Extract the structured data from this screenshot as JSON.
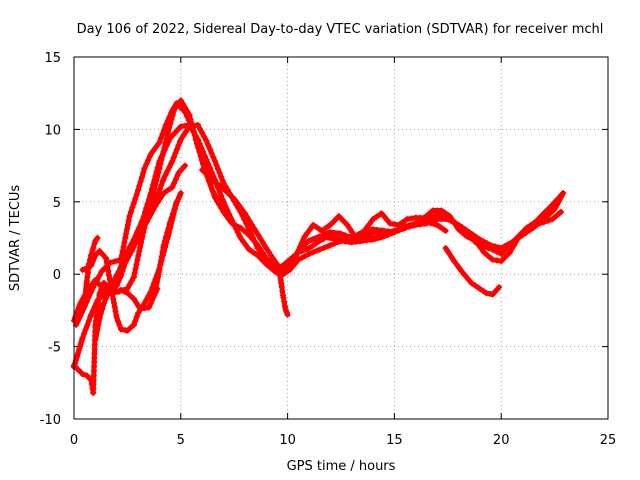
{
  "chart_data": {
    "type": "scatter",
    "title": "Day 106 of 2022, Sidereal Day-to-day VTEC variation (SDTVAR) for receiver mchl",
    "xlabel": "GPS time / hours",
    "ylabel": "SDTVAR / TECUs",
    "xlim": [
      0,
      25
    ],
    "ylim": [
      -10,
      15
    ],
    "xticks": [
      0,
      5,
      10,
      15,
      20,
      25
    ],
    "yticks": [
      -10,
      -5,
      0,
      5,
      10,
      15
    ],
    "grid": true,
    "marker": "+",
    "color": "#ff0000",
    "series": [
      {
        "name": "trace-1",
        "x": [
          0.0,
          0.3,
          0.6,
          1.0,
          1.3,
          1.7,
          2.1,
          2.5,
          2.8,
          3.2,
          3.6,
          4.0,
          4.4,
          4.7,
          5.0,
          5.4,
          5.7,
          6.1,
          6.5,
          6.8
        ],
        "y": [
          -3.2,
          -2.0,
          -1.2,
          -0.4,
          -0.9,
          -1.3,
          -1.2,
          -1.0,
          -0.2,
          2.6,
          5.0,
          7.3,
          9.8,
          11.4,
          12.0,
          11.0,
          9.3,
          7.3,
          5.7,
          5.0
        ]
      },
      {
        "name": "trace-2",
        "x": [
          0.1,
          0.5,
          0.9,
          1.3,
          1.7,
          2.2,
          2.6,
          3.0,
          3.3,
          3.6,
          4.0,
          4.3,
          4.6,
          4.8,
          5.2,
          5.6,
          6.0,
          6.3,
          6.6,
          7.0,
          7.4,
          7.8,
          8.2,
          8.6,
          9.0,
          9.4,
          9.7,
          10.0,
          10.3,
          10.6,
          11.0,
          11.5,
          12.0,
          12.5,
          13.0,
          13.5,
          14.0,
          14.5
        ],
        "y": [
          -3.5,
          -2.2,
          -0.9,
          0.2,
          0.8,
          1.0,
          4.0,
          5.8,
          7.3,
          8.3,
          9.1,
          10.3,
          11.3,
          11.8,
          11.2,
          9.9,
          8.3,
          6.6,
          5.3,
          4.3,
          3.5,
          3.2,
          2.7,
          2.0,
          1.1,
          0.5,
          0.2,
          0.5,
          1.1,
          1.8,
          2.3,
          2.6,
          2.5,
          2.3,
          2.2,
          2.3,
          2.4,
          2.6
        ]
      },
      {
        "name": "trace-3",
        "x": [
          0.0,
          0.4,
          0.8,
          1.1,
          1.4,
          1.8,
          2.1,
          2.4,
          2.8,
          3.2,
          3.6,
          4.0,
          4.5,
          5.0,
          5.4,
          5.8,
          6.2,
          6.6,
          7.0,
          7.4,
          7.8,
          8.2,
          8.6,
          9.0,
          9.4,
          9.7,
          10.1,
          10.5,
          11.0,
          11.5,
          12.0,
          12.5,
          13.0,
          13.5,
          14.0,
          14.5,
          15.0,
          15.5,
          16.0,
          16.5,
          17.0,
          17.5,
          18.0,
          18.5,
          19.0,
          19.5,
          20.0,
          20.5,
          21.0,
          21.5,
          22.0,
          22.5,
          22.9
        ],
        "y": [
          -6.4,
          -4.4,
          -2.8,
          -1.8,
          -1.4,
          -0.6,
          0.2,
          1.3,
          2.4,
          3.7,
          5.6,
          7.8,
          9.4,
          10.2,
          10.3,
          9.3,
          7.9,
          6.5,
          5.0,
          3.7,
          2.5,
          1.7,
          1.3,
          0.7,
          0.2,
          -0.1,
          0.3,
          1.0,
          1.4,
          1.7,
          2.0,
          2.3,
          2.6,
          2.6,
          2.5,
          2.6,
          2.9,
          3.2,
          3.5,
          3.8,
          4.1,
          3.9,
          3.4,
          2.9,
          2.4,
          2.0,
          1.8,
          2.2,
          2.7,
          3.2,
          3.8,
          4.5,
          5.6
        ]
      },
      {
        "name": "trace-4",
        "x": [
          3.4,
          3.8,
          4.2,
          4.6,
          5.0,
          5.4,
          5.8,
          6.2,
          6.6,
          7.0,
          7.4,
          7.8,
          8.2,
          8.6,
          9.0,
          9.4,
          9.7,
          10.1,
          10.5,
          11.0,
          11.5,
          12.0,
          12.5,
          13.0,
          13.5,
          14.0,
          14.5,
          15.0,
          15.5,
          16.0,
          16.5,
          17.0,
          17.4
        ],
        "y": [
          3.7,
          5.0,
          6.6,
          7.8,
          9.3,
          10.2,
          10.3,
          9.2,
          7.8,
          6.3,
          5.3,
          4.3,
          3.1,
          1.8,
          1.0,
          0.6,
          0.5,
          1.0,
          1.5,
          1.8,
          2.3,
          2.7,
          2.4,
          2.3,
          2.6,
          2.9,
          2.8,
          3.0,
          3.3,
          3.5,
          3.6,
          3.4,
          3.0
        ]
      },
      {
        "name": "trace-5",
        "x": [
          6.0,
          6.5,
          7.0,
          7.5,
          8.0,
          8.5,
          9.0,
          9.4,
          9.7,
          10.0,
          10.4,
          10.8,
          11.2,
          11.6,
          12.0,
          12.4,
          12.8,
          13.2,
          13.6,
          14.0,
          14.4,
          14.8,
          15.2,
          15.6,
          16.0,
          16.4,
          16.8,
          17.2,
          17.6,
          18.0,
          18.4,
          18.8,
          19.2,
          19.6,
          20.0,
          20.4,
          20.8,
          21.2,
          21.6,
          22.0,
          22.4,
          22.8
        ],
        "y": [
          7.2,
          6.5,
          5.9,
          5.2,
          4.2,
          3.0,
          1.8,
          0.9,
          0.3,
          0.3,
          1.3,
          2.6,
          3.4,
          3.0,
          3.4,
          4.0,
          3.4,
          2.5,
          3.0,
          3.8,
          4.2,
          3.5,
          3.4,
          3.8,
          3.9,
          3.9,
          4.4,
          4.4,
          4.0,
          3.1,
          2.6,
          2.3,
          1.5,
          1.0,
          0.9,
          1.5,
          2.5,
          3.2,
          3.4,
          3.6,
          3.8,
          4.3
        ]
      },
      {
        "name": "trace-6",
        "x": [
          11.0,
          11.5,
          12.0,
          12.5,
          13.0,
          13.5,
          14.0,
          14.5,
          15.0,
          15.5,
          16.0,
          16.5,
          17.0,
          17.5,
          18.0,
          18.4,
          18.8,
          19.2,
          19.6,
          20.0,
          20.4,
          20.8,
          21.2,
          21.6,
          22.0,
          22.4,
          22.9
        ],
        "y": [
          2.3,
          2.6,
          2.9,
          2.8,
          2.5,
          2.9,
          3.1,
          3.0,
          2.9,
          3.2,
          3.4,
          3.5,
          3.8,
          3.8,
          3.4,
          3.0,
          2.2,
          1.9,
          1.7,
          1.4,
          2.0,
          2.6,
          3.2,
          3.6,
          4.2,
          4.8,
          5.6
        ]
      },
      {
        "name": "trace-7",
        "x": [
          0.4,
          0.6,
          0.8,
          1.0,
          1.2,
          1.5,
          1.8,
          2.0,
          2.2,
          2.5,
          2.8,
          3.0,
          3.3,
          3.6,
          4.0,
          4.4,
          4.8
        ],
        "y": [
          0.3,
          0.4,
          0.6,
          1.3,
          1.6,
          1.1,
          -1.4,
          -3.0,
          -3.8,
          -3.9,
          -3.5,
          -2.7,
          -2.0,
          -1.2,
          0.4,
          2.6,
          5.0
        ]
      },
      {
        "name": "trace-8",
        "x": [
          0.0,
          0.2,
          0.4,
          0.6,
          0.8,
          0.9,
          1.0,
          1.2,
          1.4,
          1.6,
          1.8,
          2.0,
          2.2,
          2.5,
          2.8,
          3.1,
          3.5,
          3.9
        ],
        "y": [
          -6.3,
          -6.6,
          -6.9,
          -7.0,
          -7.3,
          -8.2,
          -3.5,
          -1.3,
          -0.6,
          -0.9,
          -1.0,
          -1.2,
          -1.1,
          -1.3,
          -1.7,
          -2.4,
          -2.3,
          -1.0
        ]
      },
      {
        "name": "trace-9",
        "x": [
          1.0,
          1.2,
          1.4,
          1.6,
          1.8,
          2.0,
          2.2,
          2.4,
          2.7,
          3.0,
          3.4,
          3.8,
          4.2,
          4.6,
          4.9,
          5.2
        ],
        "y": [
          -4.5,
          -3.0,
          -2.0,
          -1.3,
          -1.0,
          -0.8,
          -0.1,
          0.8,
          1.6,
          2.5,
          3.6,
          4.7,
          5.6,
          6.0,
          7.0,
          7.5
        ]
      },
      {
        "name": "trace-10",
        "x": [
          0.5,
          0.6,
          0.7,
          0.8,
          0.9,
          1.0,
          1.1
        ],
        "y": [
          -2.0,
          -0.5,
          0.7,
          1.3,
          1.8,
          2.3,
          2.5
        ]
      },
      {
        "name": "trace-11",
        "x": [
          9.6,
          9.7,
          9.8,
          9.9,
          10.0
        ],
        "y": [
          0.4,
          -0.6,
          -1.6,
          -2.4,
          -2.8
        ]
      },
      {
        "name": "trace-12",
        "x": [
          17.4,
          17.8,
          18.2,
          18.6,
          19.0,
          19.3,
          19.6,
          19.9
        ],
        "y": [
          1.8,
          0.9,
          0.1,
          -0.6,
          -1.0,
          -1.3,
          -1.4,
          -0.9
        ]
      },
      {
        "name": "trace-13",
        "x": [
          3.8,
          4.0,
          4.2,
          4.5,
          4.8,
          5.0
        ],
        "y": [
          -1.1,
          0.3,
          2.0,
          3.6,
          4.9,
          5.6
        ]
      }
    ]
  }
}
